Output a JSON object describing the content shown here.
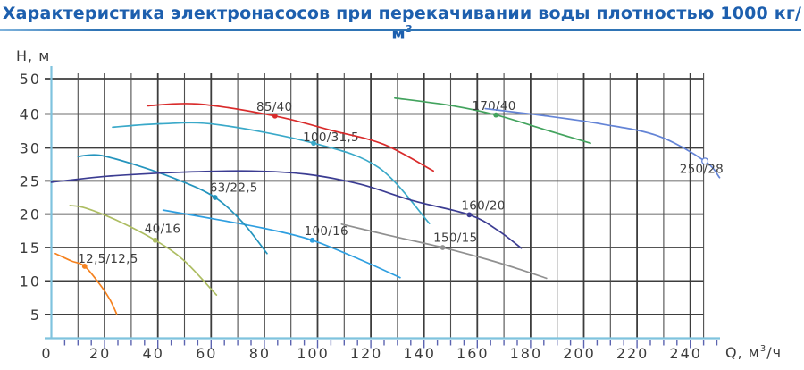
{
  "page": {
    "title": "Характеристика электронасосов при перекачивании воды плотностью 1000 кг/м",
    "title_sup": "3",
    "title_color": "#1d5fae",
    "underline_color": "#2f74b5"
  },
  "chart_data": {
    "type": "line",
    "title": "Характеристика электронасосов при перекачивании воды плотностью 1000 кг/м³",
    "xlabel": "Q, м³/ч",
    "xlabel_parts": [
      "Q, м",
      "3",
      "/ч"
    ],
    "ylabel": "Н, м",
    "x_tick_labels": [
      0,
      20,
      40,
      60,
      80,
      100,
      120,
      140,
      160,
      180,
      200,
      220,
      240
    ],
    "x_minor_tick_step": 5,
    "x_minor_tick_max": 250,
    "x_grid_step": 10,
    "x_grid_max": 240,
    "x_grid_right_edge": 245,
    "y_gridline_values": [
      5,
      10,
      15,
      20,
      25,
      30,
      40,
      50
    ],
    "grid_on": true,
    "colors": {
      "grid": "#4e4e4e",
      "grid_major": "#3d3d3d",
      "axis": "#7fc3de",
      "minor_tick": "#5c64b0",
      "tick_label": "#3b3b3b",
      "curve_label": "#3e3e3e"
    },
    "series": [
      {
        "name": "150/15",
        "color": "#909090",
        "marker": [
          147,
          15
        ],
        "marker_style": "dot",
        "label_anchor": [
          143.5,
          15.9
        ],
        "points": [
          [
            109,
            18.5
          ],
          [
            126,
            16.9
          ],
          [
            147,
            15
          ],
          [
            164,
            13.2
          ],
          [
            177,
            11.6
          ],
          [
            186,
            10.4
          ]
        ]
      },
      {
        "name": "100/16",
        "color": "#2f9fe0",
        "marker": [
          98,
          16.1
        ],
        "marker_style": "dot",
        "label_anchor": [
          95,
          16.9
        ],
        "points": [
          [
            42,
            20.6
          ],
          [
            65,
            19
          ],
          [
            82,
            17.7
          ],
          [
            98,
            16.1
          ],
          [
            116,
            13.2
          ],
          [
            131,
            10.5
          ]
        ]
      },
      {
        "name": "63/22,5",
        "color": "#2494bd",
        "marker": [
          61.5,
          22.5
        ],
        "marker_style": "dot",
        "label_anchor": [
          59.5,
          23.4
        ],
        "points": [
          [
            10,
            28.7
          ],
          [
            18,
            28.9
          ],
          [
            31,
            27.5
          ],
          [
            48,
            25.1
          ],
          [
            61.5,
            22.5
          ],
          [
            72,
            18.7
          ],
          [
            81,
            14.1
          ]
        ]
      },
      {
        "name": "100/31,5",
        "color": "#3aa9c9",
        "marker": [
          98.5,
          31.4
        ],
        "marker_style": "dot",
        "label_anchor": [
          94.5,
          32
        ],
        "points": [
          [
            23,
            36.1
          ],
          [
            41,
            37.1
          ],
          [
            62,
            36.9
          ],
          [
            98.5,
            31.4
          ],
          [
            123,
            27
          ],
          [
            142,
            18.6
          ]
        ]
      },
      {
        "name": "160/20",
        "color": "#3b3c92",
        "marker": [
          157,
          19.9
        ],
        "marker_style": "dot",
        "label_anchor": [
          154,
          20.7
        ],
        "points": [
          [
            0,
            24.8
          ],
          [
            21,
            25.7
          ],
          [
            48,
            26.3
          ],
          [
            75,
            26.5
          ],
          [
            96,
            26
          ],
          [
            116,
            24.5
          ],
          [
            136,
            22
          ],
          [
            157,
            19.9
          ],
          [
            168,
            17.5
          ],
          [
            176.5,
            14.9
          ]
        ]
      },
      {
        "name": "40/16",
        "color": "#adbd62",
        "marker": [
          39,
          16.1
        ],
        "marker_style": "dot",
        "label_anchor": [
          35,
          17.2
        ],
        "points": [
          [
            7,
            21.3
          ],
          [
            13,
            20.9
          ],
          [
            25,
            19
          ],
          [
            39,
            16.1
          ],
          [
            50,
            13
          ],
          [
            62,
            7.9
          ]
        ]
      },
      {
        "name": "12,5/12,5",
        "color": "#f5821f",
        "marker": [
          12.5,
          12.2
        ],
        "marker_style": "dot",
        "label_anchor": [
          10,
          12.7
        ],
        "points": [
          [
            1.5,
            14.1
          ],
          [
            7.5,
            13
          ],
          [
            12.5,
            12.2
          ],
          [
            18,
            9.6
          ],
          [
            22,
            7.2
          ],
          [
            24.5,
            5.1
          ]
        ]
      },
      {
        "name": "85/40",
        "color": "#d92b2b",
        "marker": [
          84,
          39.4
        ],
        "marker_style": "dot",
        "label_anchor": [
          77,
          40.9
        ],
        "points": [
          [
            36,
            42.3
          ],
          [
            55,
            42.8
          ],
          [
            84,
            39.4
          ],
          [
            106,
            35
          ],
          [
            125,
            31
          ],
          [
            143.5,
            26.5
          ]
        ]
      },
      {
        "name": "170/40",
        "color": "#43a35e",
        "marker": [
          167,
          39.7
        ],
        "marker_style": "dot",
        "label_anchor": [
          158,
          41.2
        ],
        "points": [
          [
            129,
            44.5
          ],
          [
            150,
            42.4
          ],
          [
            167,
            39.7
          ],
          [
            187,
            35
          ],
          [
            202.5,
            31.4
          ]
        ]
      },
      {
        "name": "250/28",
        "color": "#6484d6",
        "marker": [
          245.5,
          28
        ],
        "marker_style": "circle",
        "label_anchor": [
          236,
          26.2
        ],
        "points": [
          [
            163,
            41.5
          ],
          [
            185,
            39.5
          ],
          [
            207,
            37
          ],
          [
            228,
            33.5
          ],
          [
            245.5,
            28
          ],
          [
            251,
            25.5
          ]
        ]
      }
    ]
  }
}
